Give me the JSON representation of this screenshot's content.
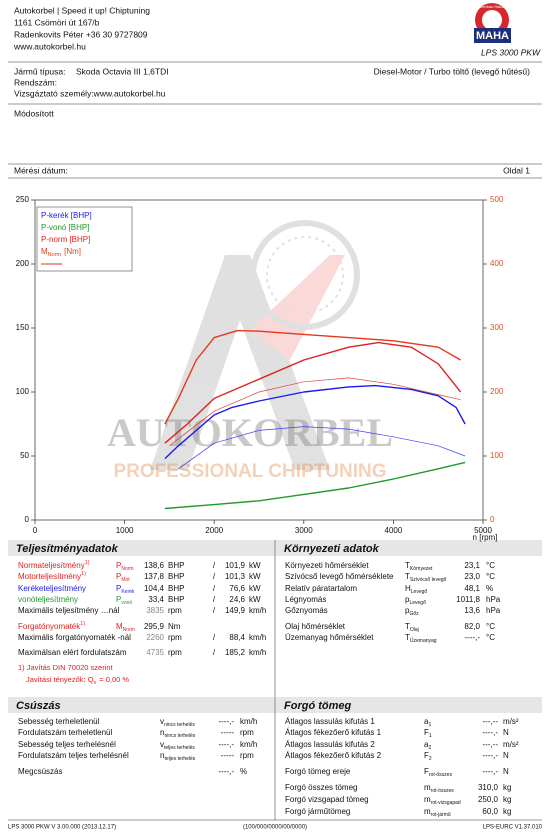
{
  "header": {
    "lines": [
      "Autokorbel | Speed it up! Chiptuning",
      "1161 Csömöri út 167/b",
      "Radenkovits Péter +36 30 9727809",
      "www.autokorbel.hu"
    ],
    "logo_ring": "Maschinenbau Haldenwang",
    "logo": "MAHA",
    "product": "LPS 3000 PKW"
  },
  "vehicle": {
    "type_label": "Jármű típusa:",
    "type": "Skoda Octavia III 1,6TDI",
    "engine": "Diesel-Motor / Turbo töltő (levegő hűtésű)",
    "plate_label": "Rendszám:",
    "examiner": "Vizsgáztató személy:www.autokorbel.hu",
    "remark": "Módosított",
    "date_label": "Mérési dátum:",
    "page": "Oldal 1"
  },
  "watermark": [
    "AUTOKORBEL",
    "PROFESSIONAL CHIPTUNING"
  ],
  "chart_data": {
    "type": "line",
    "xlabel": "n [rpm]",
    "xlim": [
      0,
      5000
    ],
    "xticks": [
      0,
      1000,
      2000,
      3000,
      4000,
      5000
    ],
    "ylim": [
      0,
      250
    ],
    "yticks": [
      0,
      50,
      100,
      150,
      200,
      250
    ],
    "y2lim": [
      0,
      500
    ],
    "y2ticks": [
      0,
      100,
      200,
      300,
      400,
      500
    ],
    "y2color": "#e05020",
    "grid": false,
    "legend": "upper left",
    "series": [
      {
        "name": "P-kerék [BHP]",
        "color": "#1a1aee",
        "line_width": 1.4,
        "x": [
          1450,
          1600,
          1800,
          2000,
          2200,
          2500,
          3000,
          3500,
          3800,
          4200,
          4500,
          4700,
          4800
        ],
        "values": [
          48,
          58,
          70,
          82,
          88,
          93,
          100,
          104,
          105,
          102,
          97,
          88,
          75
        ]
      },
      {
        "name": "P-vonó [BHP]",
        "color": "#1f9a2a",
        "line_width": 1.4,
        "x": [
          1450,
          2000,
          2500,
          3000,
          3500,
          4000,
          4500,
          4800
        ],
        "values": [
          9,
          12,
          15,
          20,
          25,
          32,
          40,
          45
        ]
      },
      {
        "name": "P-norm [BHP]",
        "color": "#e02020",
        "line_width": 1.4,
        "x": [
          1450,
          1700,
          2000,
          2500,
          3000,
          3500,
          3835,
          4200,
          4500,
          4750
        ],
        "values": [
          60,
          75,
          95,
          110,
          125,
          135,
          138.6,
          135,
          122,
          100
        ]
      },
      {
        "name": "M",
        "name_sub": "Norm",
        "name_unit": "[Nm]",
        "color": "#e03a1a",
        "line_width": 1.4,
        "axis": "y2",
        "x": [
          1450,
          1600,
          1800,
          2000,
          2260,
          2500,
          3000,
          3500,
          4000,
          4500,
          4750
        ],
        "values": [
          150,
          190,
          250,
          285,
          296,
          295,
          290,
          285,
          280,
          270,
          250
        ]
      },
      {
        "color": "#e04040",
        "line_width": 0.7,
        "x": [
          1500,
          2000,
          2500,
          3000,
          3500,
          4000,
          4500,
          4750
        ],
        "values": [
          58,
          85,
          100,
          108,
          111,
          106,
          98,
          94
        ]
      },
      {
        "color": "#4040ee",
        "line_width": 0.7,
        "x": [
          1600,
          2000,
          2500,
          3000,
          3500,
          4000,
          4500,
          4800
        ],
        "values": [
          40,
          60,
          70,
          73,
          71,
          65,
          58,
          50
        ]
      }
    ]
  },
  "performance": {
    "title": "Teljesítményadatok",
    "rows": [
      {
        "label": "Normateljesítmény",
        "note": "1)",
        "color": "#e02020",
        "sym": "P",
        "sub": "Norm",
        "v1": "138,6",
        "u1": "BHP",
        "sep": "/",
        "v2": "101,9",
        "u2": "kW"
      },
      {
        "label": "Motorteljesítmény",
        "note": "1)",
        "color": "#e02020",
        "sym": "P",
        "sub": "Mot",
        "v1": "137,8",
        "u1": "BHP",
        "sep": "/",
        "v2": "101,3",
        "u2": "kW"
      },
      {
        "label": "Keréketeljesítmény",
        "color": "#1a1aee",
        "sym": "P",
        "sub": "Kerék",
        "v1": "104,4",
        "u1": "BHP",
        "sep": "/",
        "v2": "76,6",
        "u2": "kW"
      },
      {
        "label": "vonóteljesítmény",
        "color": "#1f9a2a",
        "sym": "P",
        "sub": "vonó",
        "v1": "33,4",
        "u1": "BHP",
        "sep": "/",
        "v2": "24,6",
        "u2": "kW"
      },
      {
        "label": "Maximális teljesítmény …nál",
        "color": "#111",
        "v1": "3835",
        "v1_color": "#888",
        "u1": "rpm",
        "sep": "/",
        "v2": "149,9",
        "u2": "km/h"
      },
      {
        "label": "Forgatónyomaték",
        "note": "1)",
        "color": "#e02020",
        "sym": "M",
        "sub": "Norm",
        "v1": "295,9",
        "u1": "Nm"
      },
      {
        "label": "Maximális forgatónyomaték -nál",
        "color": "#111",
        "v1": "2260",
        "v1_color": "#888",
        "u1": "rpm",
        "sep": "/",
        "v2": "88,4",
        "u2": "km/h"
      },
      {
        "label": "Maximálsan elért fordulatszám",
        "color": "#111",
        "v1": "4735",
        "v1_color": "#888",
        "u1": "rpm",
        "sep": "/",
        "v2": "185,2",
        "u2": "km/h"
      }
    ],
    "note": "1) Javítás DIN 70020 szerint",
    "correction": {
      "text": "Javítási tényezők: Q",
      "sub": "v",
      "rest": "=   0,00 %"
    }
  },
  "environment": {
    "title": "Környezeti adatok",
    "rows": [
      {
        "label": "Környezeti hőmérséklet",
        "sym": "T",
        "sub": "Környezet",
        "v1": "23,1",
        "u1": "°C"
      },
      {
        "label": "Szívócső levegő hőmérséklete",
        "sym": "T",
        "sub": "Szívócső levegő",
        "v1": "23,0",
        "u1": "°C"
      },
      {
        "label": "Relatív páratartalom",
        "sym": "H",
        "sub": "Levegő",
        "v1": "48,1",
        "u1": "%"
      },
      {
        "label": "Légnyomás",
        "sym": "p",
        "sub": "Levegő",
        "v1": "1011,8",
        "u1": "hPa"
      },
      {
        "label": "Gőznyomás",
        "sym": "p",
        "sub": "Gőz",
        "v1": "13,6",
        "u1": "hPa"
      },
      {
        "label": "Olaj hőmérséklet",
        "sym": "T",
        "sub": "Olaj",
        "v1": "82,0",
        "u1": "°C"
      },
      {
        "label": "Üzemanyag hőmérséklet",
        "sym": "T",
        "sub": "Üzemanyag",
        "v1": "----,-",
        "u1": "°C"
      }
    ]
  },
  "slip": {
    "title": "Csúszás",
    "rows": [
      {
        "label": "Sebesség terheletlenül",
        "sym": "v",
        "sub": "nincs terhelés",
        "v1": "----,-",
        "u1": "km/h"
      },
      {
        "label": "Fordulatszám terheletlenül",
        "sym": "n",
        "sub": "nincs terhelés",
        "v1": "-----",
        "u1": "rpm"
      },
      {
        "label": "Sebesség teljes terhelésnél",
        "sym": "v",
        "sub": "teljes terhelés",
        "v1": "----,-",
        "u1": "km/h"
      },
      {
        "label": "Fordulatszám teljes terhelésnél",
        "sym": "n",
        "sub": "teljes terhelés",
        "v1": "-----",
        "u1": "rpm"
      },
      {
        "label": "Megcsúszás",
        "v1": "----,-",
        "u1": "%"
      }
    ]
  },
  "rotating": {
    "title": "Forgó tömeg",
    "rows": [
      {
        "label": "Átlagos lassulás kifutás 1",
        "sym": "a",
        "sub": "1",
        "v1": "---,--",
        "u1": "m/s²"
      },
      {
        "label": "Átlagos fékezőerő kifutás 1",
        "sym": "F",
        "sub": "1",
        "v1": "----,-",
        "u1": "N"
      },
      {
        "label": "Átlagos lassulás kifutás 2",
        "sym": "a",
        "sub": "2",
        "v1": "---,--",
        "u1": "m/s²"
      },
      {
        "label": "Átlagos fékezőerő kifutás 2",
        "sym": "F",
        "sub": "2",
        "v1": "----,-",
        "u1": "N"
      },
      {
        "label": "Forgó tömeg ereje",
        "sym": "F",
        "sub": "rot-összes",
        "v1": "----,-",
        "u1": "N"
      },
      {
        "label": "Forgó összes tömeg",
        "sym": "m",
        "sub": "rot-összes",
        "v1": "310,0",
        "u1": "kg"
      },
      {
        "label": "Forgó vizsgapad tömeg",
        "sym": "m",
        "sub": "rot-vizsgapad",
        "v1": "250,0",
        "u1": "kg"
      },
      {
        "label": "Forgó járműtömeg",
        "sym": "m",
        "sub": "rot-jármű",
        "v1": "60,0",
        "u1": "kg"
      }
    ]
  },
  "footer": [
    "LPS 3000 PKW V 3.00.000 (2013.12.17)",
    "(100/000/0000/00/0000)",
    "LPS-EURC V1.37.010"
  ]
}
